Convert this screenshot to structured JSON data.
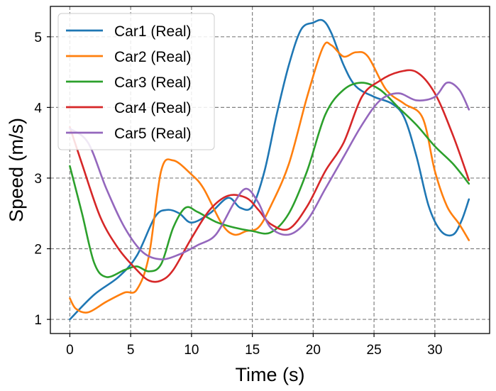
{
  "chart_data": {
    "type": "line",
    "title": "",
    "xlabel": "Time (s)",
    "ylabel": "Speed (m/s)",
    "xlim": [
      -1.6,
      34.5
    ],
    "ylim": [
      0.8,
      5.43
    ],
    "xticks": [
      0,
      5,
      10,
      15,
      20,
      25,
      30
    ],
    "yticks": [
      1,
      2,
      3,
      4,
      5
    ],
    "grid": true,
    "legend_position": "upper-left",
    "series": [
      {
        "name": "Car1 (Real)",
        "color": "#1f77b4",
        "x": [
          0,
          2,
          4,
          5.5,
          7,
          8,
          9,
          10,
          11.5,
          13,
          14,
          15,
          16,
          17,
          18,
          19,
          20,
          20.8,
          21.5,
          22.5,
          23.5,
          25,
          26.5,
          27.5,
          28.5,
          29.5,
          30.5,
          31.5,
          32.2,
          32.8
        ],
        "y": [
          1.0,
          1.35,
          1.6,
          1.9,
          2.45,
          2.55,
          2.5,
          2.37,
          2.5,
          2.72,
          2.58,
          2.6,
          3.1,
          3.9,
          4.6,
          5.1,
          5.2,
          5.23,
          5.05,
          4.6,
          4.3,
          4.15,
          4.05,
          3.85,
          3.3,
          2.6,
          2.25,
          2.2,
          2.4,
          2.7
        ]
      },
      {
        "name": "Car2 (Real)",
        "color": "#ff7f0e",
        "x": [
          0,
          0.5,
          1.5,
          3,
          4.5,
          5.5,
          6.5,
          7.5,
          8.5,
          10,
          11,
          12.5,
          13.5,
          14.5,
          15.5,
          16.5,
          18,
          19.5,
          20.8,
          21.5,
          22.5,
          23.5,
          24.5,
          26,
          27.5,
          29,
          30,
          31,
          32,
          32.8
        ],
        "y": [
          1.3,
          1.15,
          1.1,
          1.25,
          1.38,
          1.42,
          1.9,
          3.1,
          3.25,
          3.05,
          2.85,
          2.35,
          2.2,
          2.25,
          2.3,
          2.6,
          3.2,
          4.15,
          4.85,
          4.88,
          4.72,
          4.78,
          4.72,
          4.25,
          4.05,
          3.85,
          3.1,
          2.6,
          2.35,
          2.12
        ]
      },
      {
        "name": "Car3 (Real)",
        "color": "#2ca02c",
        "x": [
          0,
          1,
          2,
          3,
          4.5,
          5.5,
          6.5,
          7.5,
          8.5,
          9.5,
          10.5,
          12,
          13.5,
          15,
          16.5,
          18,
          19.5,
          21,
          22.5,
          24,
          25.5,
          27,
          28.5,
          30,
          31.5,
          32.8
        ],
        "y": [
          3.17,
          2.5,
          1.8,
          1.6,
          1.7,
          1.75,
          1.68,
          1.78,
          2.3,
          2.58,
          2.52,
          2.38,
          2.3,
          2.25,
          2.23,
          2.5,
          3.1,
          3.9,
          4.25,
          4.35,
          4.25,
          4.0,
          3.75,
          3.45,
          3.2,
          2.92
        ]
      },
      {
        "name": "Car4 (Real)",
        "color": "#d62728",
        "x": [
          0,
          1,
          2.5,
          4,
          5.5,
          6.5,
          7.5,
          8.5,
          10,
          11.5,
          13,
          14.5,
          15.5,
          16.5,
          18,
          19.5,
          21,
          22.5,
          24,
          25.5,
          27,
          28.5,
          30,
          31.5,
          32.8
        ],
        "y": [
          3.72,
          3.2,
          2.45,
          2.0,
          1.7,
          1.55,
          1.55,
          1.7,
          2.15,
          2.55,
          2.75,
          2.72,
          2.55,
          2.35,
          2.28,
          2.6,
          3.1,
          3.5,
          4.15,
          4.38,
          4.5,
          4.5,
          4.2,
          3.6,
          2.97
        ]
      },
      {
        "name": "Car5 (Real)",
        "color": "#9467bd",
        "x": [
          0,
          1.5,
          3,
          4.5,
          6,
          7.5,
          9,
          10.5,
          12,
          13.5,
          14.5,
          15.5,
          16.5,
          18,
          19.5,
          21,
          22.5,
          24,
          25.5,
          27,
          28.5,
          30,
          31,
          32,
          32.8
        ],
        "y": [
          3.7,
          3.5,
          2.85,
          2.3,
          1.95,
          1.85,
          1.92,
          2.05,
          2.2,
          2.65,
          2.85,
          2.65,
          2.3,
          2.2,
          2.4,
          2.85,
          3.3,
          3.75,
          4.1,
          4.2,
          4.1,
          4.15,
          4.35,
          4.25,
          3.97
        ]
      }
    ]
  }
}
